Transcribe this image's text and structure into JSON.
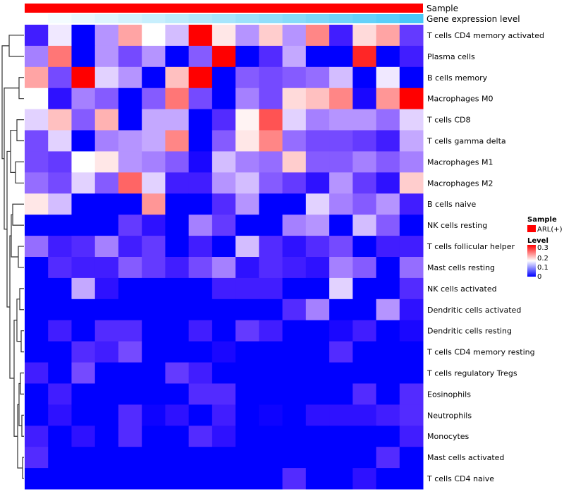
{
  "chart_data": {
    "type": "heatmap",
    "annotations": {
      "sample_label": "Sample",
      "gene_label": "Gene expression level",
      "sample_color": "#ff0000",
      "gene_expression_relative": [
        0,
        0.06,
        0.12,
        0.18,
        0.24,
        0.3,
        0.36,
        0.42,
        0.48,
        0.54,
        0.6,
        0.66,
        0.72,
        0.78,
        0.84,
        0.9,
        1.0
      ],
      "gene_color_low": "#ffffff",
      "gene_color_high": "#48c8f8"
    },
    "rows": [
      "T cells CD4 memory activated",
      "Plasma cells",
      "B cells memory",
      "Macrophages M0",
      "T cells CD8",
      "T cells gamma delta",
      "Macrophages M1",
      "Macrophages M2",
      "B cells naive",
      "NK cells resting",
      "T cells follicular helper",
      "Mast cells resting",
      "NK cells activated",
      "Dendritic cells activated",
      "Dendritic cells resting",
      "T cells CD4 memory resting",
      "T cells regulatory  Tregs",
      "Eosinophils",
      "Neutrophils",
      "Monocytes",
      "Mast cells activated",
      "T cells CD4 naive"
    ],
    "n_columns": 17,
    "values": [
      [
        0.03,
        0.14,
        0,
        0.1,
        0.22,
        0.15,
        0.12,
        0.3,
        0.17,
        0.1,
        0.19,
        0.1,
        0.24,
        0.03,
        0.18,
        0.22,
        0.05
      ],
      [
        0.09,
        0.25,
        0,
        0.1,
        0.06,
        0.1,
        0,
        0.07,
        0.3,
        0,
        0.04,
        0.11,
        0,
        0,
        0.29,
        0,
        0.03
      ],
      [
        0.22,
        0.06,
        0.3,
        0.13,
        0.1,
        0,
        0.2,
        0.3,
        0,
        0.07,
        0.06,
        0.07,
        0.08,
        0.12,
        0,
        0.14,
        0
      ],
      [
        0.15,
        0.02,
        0.09,
        0.07,
        0,
        0.07,
        0.25,
        0.06,
        0,
        0.09,
        0.06,
        0.18,
        0.2,
        0.24,
        0.01,
        0.23,
        0.3
      ],
      [
        0.13,
        0.2,
        0.07,
        0.21,
        0,
        0.11,
        0.11,
        0,
        0.04,
        0.16,
        0.27,
        0.13,
        0.09,
        0.1,
        0.1,
        0.08,
        0.13
      ],
      [
        0.06,
        0.13,
        0,
        0.09,
        0.1,
        0.11,
        0.24,
        0,
        0.07,
        0.17,
        0.24,
        0.08,
        0.06,
        0.06,
        0.05,
        0.03,
        0.11
      ],
      [
        0.06,
        0.05,
        0.15,
        0.17,
        0.1,
        0.09,
        0.07,
        0.01,
        0.12,
        0.09,
        0.08,
        0.19,
        0.07,
        0.07,
        0.09,
        0.07,
        0.09
      ],
      [
        0.08,
        0.06,
        0.13,
        0.07,
        0.26,
        0.13,
        0.03,
        0.03,
        0.1,
        0.12,
        0.07,
        0.05,
        0.02,
        0.1,
        0.05,
        0.02,
        0.19
      ],
      [
        0.17,
        0.12,
        0,
        0,
        0,
        0.23,
        0,
        0,
        0.04,
        0.1,
        0,
        0,
        0.13,
        0.09,
        0.07,
        0.1,
        0.03
      ],
      [
        0,
        0,
        0,
        0,
        0.05,
        0.02,
        0,
        0.09,
        0.05,
        0,
        0,
        0.09,
        0.1,
        0,
        0.12,
        0.07,
        0
      ],
      [
        0.08,
        0.03,
        0.04,
        0.09,
        0.03,
        0.05,
        0,
        0.03,
        0,
        0.12,
        0.04,
        0.02,
        0.04,
        0.06,
        0,
        0.03,
        0.03
      ],
      [
        0,
        0.04,
        0.03,
        0.03,
        0.07,
        0.05,
        0.03,
        0.06,
        0.09,
        0.02,
        0.04,
        0.03,
        0.02,
        0.09,
        0.07,
        0,
        0.08
      ],
      [
        0,
        0,
        0.11,
        0.02,
        0,
        0,
        0,
        0,
        0.03,
        0.03,
        0.03,
        0,
        0,
        0.13,
        0,
        0,
        0.04
      ],
      [
        0,
        0,
        0,
        0,
        0,
        0,
        0,
        0,
        0,
        0,
        0,
        0.04,
        0.09,
        0,
        0,
        0.1,
        0.02
      ],
      [
        0,
        0.03,
        0,
        0.04,
        0.04,
        0,
        0,
        0.03,
        0,
        0.05,
        0.03,
        0,
        0,
        0.01,
        0.03,
        0,
        0.01
      ],
      [
        0,
        0,
        0.04,
        0.03,
        0.06,
        0,
        0,
        0,
        0.01,
        0,
        0,
        0,
        0,
        0.04,
        0,
        0,
        0
      ],
      [
        0.03,
        0,
        0.06,
        0,
        0,
        0,
        0.05,
        0.03,
        0,
        0,
        0,
        0,
        0,
        0,
        0,
        0,
        0
      ],
      [
        0,
        0.03,
        0,
        0,
        0,
        0,
        0,
        0.04,
        0.04,
        0,
        0,
        0,
        0,
        0,
        0.04,
        0,
        0.04
      ],
      [
        0,
        0.02,
        0,
        0,
        0.04,
        0.005,
        0.02,
        0,
        0.03,
        0,
        0.005,
        0,
        0.02,
        0.02,
        0.02,
        0.03,
        0.04
      ],
      [
        0.03,
        0,
        0.02,
        0,
        0.04,
        0,
        0,
        0.04,
        0.02,
        0,
        0,
        0,
        0,
        0,
        0,
        0,
        0.03
      ],
      [
        0.04,
        0,
        0,
        0,
        0,
        0,
        0,
        0,
        0,
        0,
        0,
        0,
        0,
        0,
        0,
        0.04,
        0
      ],
      [
        0,
        0,
        0,
        0,
        0,
        0,
        0,
        0,
        0,
        0,
        0,
        0.04,
        0,
        0,
        0.02,
        0,
        0
      ]
    ],
    "color_scale": {
      "low": "#0000ff",
      "mid": "#ffffff",
      "high": "#ff0000",
      "range": [
        0,
        0.3
      ]
    },
    "legend": {
      "sample_title": "Sample",
      "sample_entry": "ARL(+)",
      "level_title": "Level",
      "level_ticks": [
        "0.3",
        "0.2",
        "0.1",
        "0"
      ],
      "placement": "right"
    }
  }
}
